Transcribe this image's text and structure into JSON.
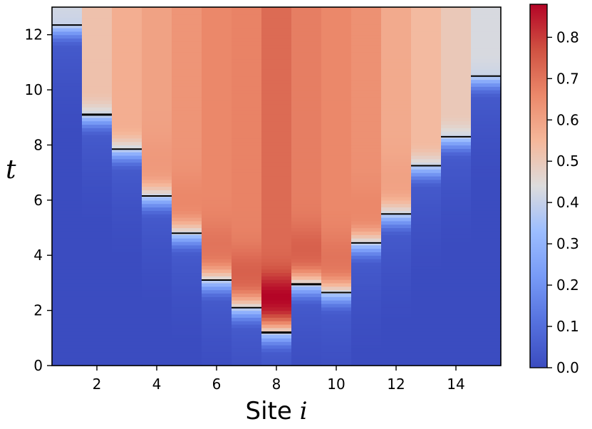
{
  "chart_data": {
    "type": "heatmap",
    "title": "",
    "xlabel": "Site",
    "xlabel_var": "i",
    "ylabel": "t",
    "xlim": [
      0.5,
      15.5
    ],
    "ylim": [
      0,
      13
    ],
    "x_ticks": [
      2,
      4,
      6,
      8,
      10,
      12,
      14
    ],
    "y_ticks": [
      0,
      2,
      4,
      6,
      8,
      10,
      12
    ],
    "colormap": "coolwarm",
    "colorbar": {
      "min": 0.0,
      "max": 0.88,
      "ticks": [
        "0.0",
        "0.1",
        "0.2",
        "0.3",
        "0.4",
        "0.5",
        "0.6",
        "0.7",
        "0.8"
      ],
      "tick_values": [
        0.0,
        0.1,
        0.2,
        0.3,
        0.4,
        0.5,
        0.6,
        0.7,
        0.8
      ]
    },
    "sites": [
      1,
      2,
      3,
      4,
      5,
      6,
      7,
      8,
      9,
      10,
      11,
      12,
      13,
      14,
      15
    ],
    "threshold_times": [
      12.35,
      9.1,
      7.85,
      6.15,
      4.8,
      3.1,
      2.1,
      1.2,
      2.95,
      2.65,
      4.45,
      5.5,
      7.25,
      8.3,
      10.5
    ],
    "plateau_values": [
      0.42,
      0.52,
      0.57,
      0.6,
      0.63,
      0.66,
      0.67,
      0.72,
      0.68,
      0.66,
      0.64,
      0.58,
      0.54,
      0.5,
      0.43
    ],
    "peak_values": [
      0.42,
      0.52,
      0.57,
      0.62,
      0.66,
      0.7,
      0.74,
      0.88,
      0.74,
      0.7,
      0.66,
      0.6,
      0.54,
      0.5,
      0.43
    ],
    "grid": false,
    "legend": "none"
  }
}
